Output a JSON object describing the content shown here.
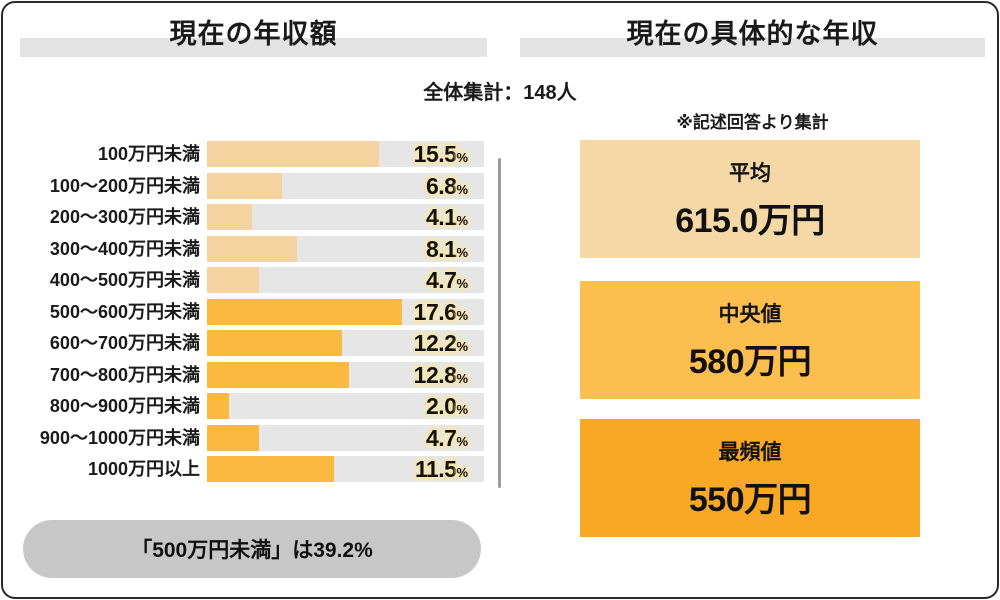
{
  "page": {
    "left_title": "現在の年収額",
    "right_title": "現在の具体的な年収",
    "total_note": "全体集計：148人",
    "source_note": "※記述回答より集計"
  },
  "chart_data": {
    "type": "bar",
    "orientation": "horizontal",
    "title": "現在の年収額",
    "subtitle": "全体集計：148人",
    "categories": [
      "100万円未満",
      "100〜200万円未満",
      "200〜300万円未満",
      "300〜400万円未満",
      "400〜500万円未満",
      "500〜600万円未満",
      "600〜700万円未満",
      "700〜800万円未満",
      "800〜900万円未満",
      "900〜1000万円未満",
      "1000万円以上"
    ],
    "values": [
      15.5,
      6.8,
      4.1,
      8.1,
      4.7,
      17.6,
      12.2,
      12.8,
      2.0,
      4.7,
      11.5
    ],
    "unit": "%",
    "axis_max": 25,
    "grid": false,
    "legend": false,
    "bar_colors": [
      "#F5D3A0",
      "#F5D3A0",
      "#F5D3A0",
      "#F5D3A0",
      "#F5D3A0",
      "#FCB942",
      "#FCB942",
      "#FCB942",
      "#FCB942",
      "#FCB942",
      "#FCB942"
    ],
    "track_color": "#E5E6E5",
    "annotation": "「500万円未満」は39.2%"
  },
  "stats_cards": [
    {
      "label": "平均",
      "value": "615.0万円",
      "bg": "#F5D8A6"
    },
    {
      "label": "中央値",
      "value": "580万円",
      "bg": "#FCBE4F"
    },
    {
      "label": "最頻値",
      "value": "550万円",
      "bg": "#F9A826"
    }
  ],
  "colors": {
    "header_band": "#E3E3E3",
    "bar_light": "#F5D3A0",
    "bar_dark": "#FCB942",
    "bar_track": "#E5E6E5",
    "value_halo": "#F8E6AE",
    "summary_pill_bg": "#C7C7C7",
    "divider": "#9B9B9B",
    "frame_border": "#2A2A2A"
  }
}
